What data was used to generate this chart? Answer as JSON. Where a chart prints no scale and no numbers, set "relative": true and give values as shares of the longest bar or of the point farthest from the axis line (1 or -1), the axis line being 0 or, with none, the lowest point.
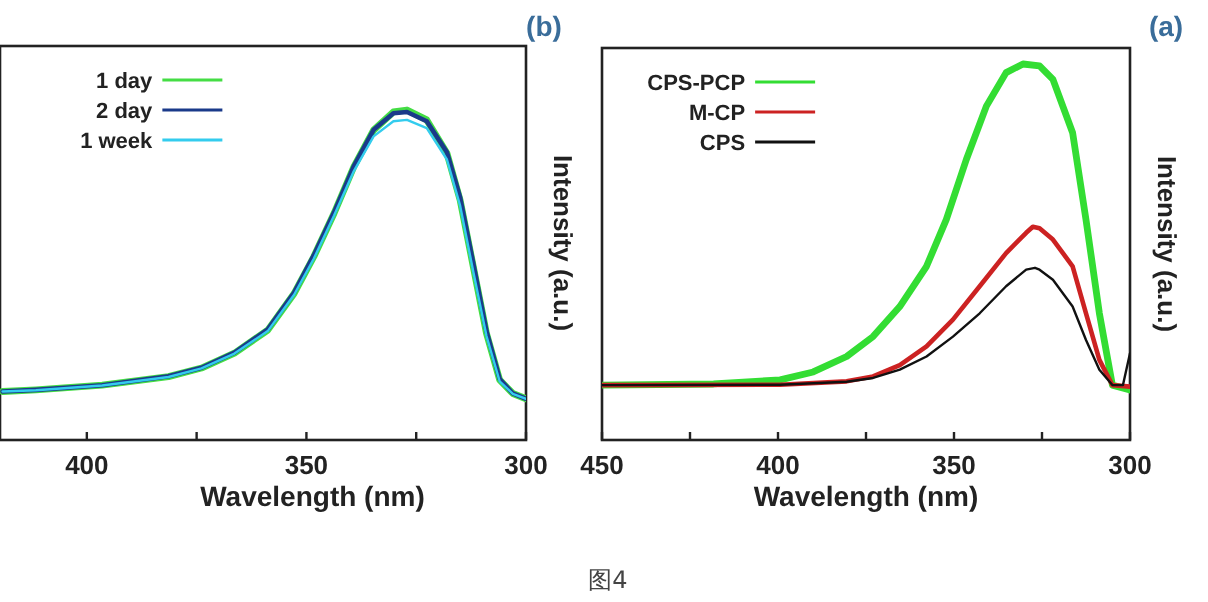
{
  "chart_data": [
    {
      "type": "line",
      "title": "(b)",
      "xlabel": "Wavelength (nm)",
      "ylabel": "Intensity (a.u.)",
      "relative": true,
      "legend": "top left",
      "xlim": [
        420,
        300
      ],
      "xticks": [
        300,
        {
          "value": 325,
          "label": null
        },
        350,
        {
          "value": 375,
          "label": null
        },
        400
      ],
      "annotations": [
        "图4"
      ],
      "series": [
        {
          "name": "1 day",
          "color": "#44dd44",
          "x": [
            300,
            303,
            306,
            309,
            312,
            315,
            318,
            322.6,
            327.1,
            330.2,
            334.7,
            339.2,
            343.7,
            348.3,
            352.8,
            358.8,
            366.4,
            373.9,
            381.4,
            396.5,
            411.6,
            419.2
          ],
          "values": [
            0.125,
            0.141,
            0.182,
            0.323,
            0.525,
            0.727,
            0.869,
            0.97,
            1.0,
            0.994,
            0.939,
            0.828,
            0.687,
            0.556,
            0.444,
            0.333,
            0.263,
            0.218,
            0.192,
            0.166,
            0.152,
            0.147
          ]
        },
        {
          "name": "2 day",
          "color": "#1a3a8a",
          "x": [
            300,
            303,
            306,
            309,
            312,
            315,
            318,
            322.6,
            327.1,
            330.2,
            334.7,
            339.2,
            343.7,
            348.3,
            352.8,
            358.8,
            366.4,
            373.9,
            381.4,
            396.5,
            411.6,
            419.2
          ],
          "values": [
            0.125,
            0.141,
            0.185,
            0.33,
            0.535,
            0.735,
            0.872,
            0.966,
            0.994,
            0.99,
            0.94,
            0.83,
            0.69,
            0.56,
            0.447,
            0.335,
            0.265,
            0.219,
            0.193,
            0.166,
            0.152,
            0.147
          ]
        },
        {
          "name": "1 week",
          "color": "#33ccee",
          "x": [
            300,
            303,
            306,
            309,
            312,
            315,
            318,
            322.6,
            327.1,
            330.2,
            334.7,
            339.2,
            343.7,
            348.3,
            352.8,
            358.8,
            366.4,
            373.9,
            381.4,
            396.5,
            411.6,
            419.2
          ],
          "values": [
            0.125,
            0.14,
            0.178,
            0.315,
            0.51,
            0.71,
            0.85,
            0.945,
            0.97,
            0.966,
            0.92,
            0.815,
            0.68,
            0.55,
            0.44,
            0.33,
            0.262,
            0.217,
            0.191,
            0.165,
            0.151,
            0.147
          ]
        }
      ]
    },
    {
      "type": "line",
      "title": "(a)",
      "xlabel": "Wavelength (nm)",
      "ylabel": "Intensity (a.u.)",
      "relative": true,
      "legend": "top left",
      "xlim": [
        450,
        300
      ],
      "xticks": [
        300,
        {
          "value": 325,
          "label": null
        },
        350,
        {
          "value": 375,
          "label": null
        },
        400,
        {
          "value": 425,
          "label": null
        },
        450
      ],
      "series": [
        {
          "name": "CPS-PCP",
          "color": "#33dd33",
          "x": [
            300,
            305,
            308.7,
            312.5,
            316.3,
            321.9,
            325.7,
            330.4,
            335.2,
            340.8,
            346.5,
            352.2,
            357.8,
            365.4,
            373,
            380.5,
            390,
            399.4,
            418.3,
            450
          ],
          "values": [
            0.133,
            0.146,
            0.337,
            0.586,
            0.817,
            0.959,
            0.995,
            1.0,
            0.977,
            0.888,
            0.746,
            0.586,
            0.462,
            0.355,
            0.275,
            0.222,
            0.181,
            0.16,
            0.149,
            0.146
          ]
        },
        {
          "name": "M-CP",
          "color": "#cc2222",
          "x": [
            300,
            305,
            308.7,
            312.5,
            316.3,
            321.9,
            325.7,
            327.6,
            329.5,
            335.2,
            342.7,
            350.3,
            357.8,
            365.4,
            373,
            380.5,
            399.4,
            450
          ],
          "values": [
            0.142,
            0.146,
            0.213,
            0.337,
            0.462,
            0.533,
            0.563,
            0.567,
            0.551,
            0.497,
            0.409,
            0.32,
            0.249,
            0.199,
            0.169,
            0.156,
            0.147,
            0.146
          ]
        },
        {
          "name": "CPS",
          "color": "#111111",
          "x": [
            300,
            302,
            305,
            308.7,
            312.5,
            316.3,
            321.9,
            325.7,
            327,
            329.5,
            335.2,
            342.7,
            350.3,
            357.8,
            365.4,
            373,
            380.5,
            399.4,
            450
          ],
          "values": [
            0.231,
            0.146,
            0.146,
            0.187,
            0.266,
            0.355,
            0.426,
            0.453,
            0.458,
            0.453,
            0.409,
            0.337,
            0.275,
            0.222,
            0.187,
            0.165,
            0.155,
            0.147,
            0.146
          ]
        }
      ]
    }
  ]
}
